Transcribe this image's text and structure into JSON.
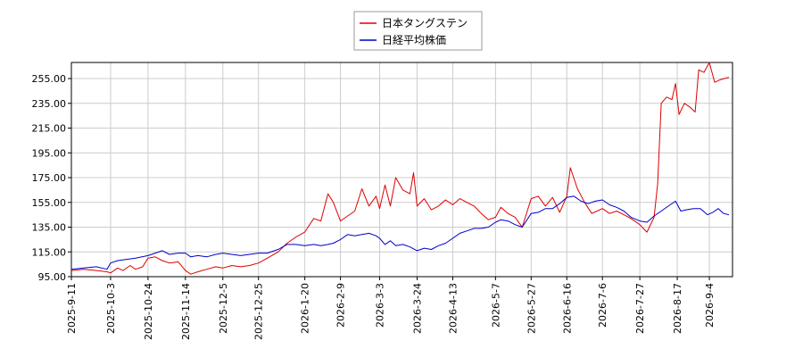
{
  "chart_data": {
    "type": "line",
    "title": "",
    "xlabel": "",
    "ylabel": "",
    "ylim": [
      95,
      268
    ],
    "yticks": [
      "95.00",
      "115.00",
      "135.00",
      "155.00",
      "175.00",
      "195.00",
      "215.00",
      "235.00",
      "255.00"
    ],
    "xlim": [
      "2025-09-11",
      "2026-09-17"
    ],
    "xticks": [
      "2025-9-11",
      "2025-10-3",
      "2025-10-24",
      "2025-11-14",
      "2025-12-5",
      "2025-12-25",
      "2026-1-20",
      "2026-2-9",
      "2026-3-3",
      "2026-3-24",
      "2026-4-13",
      "2026-5-7",
      "2026-5-27",
      "2026-6-16",
      "2026-7-6",
      "2026-7-27",
      "2026-8-17",
      "2026-9-4"
    ],
    "grid": true,
    "legend": "top-center",
    "series": [
      {
        "name": "日本タングステン",
        "color": "#dd0000",
        "points": [
          [
            "2025-09-11",
            100
          ],
          [
            "2025-09-18",
            101
          ],
          [
            "2025-09-25",
            100
          ],
          [
            "2025-10-01",
            99
          ],
          [
            "2025-10-03",
            98
          ],
          [
            "2025-10-07",
            102
          ],
          [
            "2025-10-10",
            100
          ],
          [
            "2025-10-14",
            104
          ],
          [
            "2025-10-17",
            101
          ],
          [
            "2025-10-21",
            103
          ],
          [
            "2025-10-24",
            110
          ],
          [
            "2025-10-28",
            111
          ],
          [
            "2025-11-01",
            108
          ],
          [
            "2025-11-05",
            106
          ],
          [
            "2025-11-10",
            107
          ],
          [
            "2025-11-14",
            100
          ],
          [
            "2025-11-17",
            97
          ],
          [
            "2025-11-21",
            99
          ],
          [
            "2025-11-26",
            101
          ],
          [
            "2025-12-01",
            103
          ],
          [
            "2025-12-05",
            102
          ],
          [
            "2025-12-10",
            104
          ],
          [
            "2025-12-15",
            103
          ],
          [
            "2025-12-20",
            104
          ],
          [
            "2025-12-25",
            106
          ],
          [
            "2025-12-30",
            110
          ],
          [
            "2026-01-05",
            115
          ],
          [
            "2026-01-10",
            122
          ],
          [
            "2026-01-15",
            127
          ],
          [
            "2026-01-20",
            131
          ],
          [
            "2026-01-25",
            142
          ],
          [
            "2026-01-29",
            140
          ],
          [
            "2026-02-02",
            162
          ],
          [
            "2026-02-05",
            155
          ],
          [
            "2026-02-09",
            140
          ],
          [
            "2026-02-13",
            144
          ],
          [
            "2026-02-17",
            148
          ],
          [
            "2026-02-21",
            166
          ],
          [
            "2026-02-25",
            152
          ],
          [
            "2026-03-01",
            160
          ],
          [
            "2026-03-03",
            150
          ],
          [
            "2026-03-06",
            169
          ],
          [
            "2026-03-09",
            152
          ],
          [
            "2026-03-12",
            175
          ],
          [
            "2026-03-16",
            165
          ],
          [
            "2026-03-20",
            162
          ],
          [
            "2026-03-22",
            179
          ],
          [
            "2026-03-24",
            152
          ],
          [
            "2026-03-28",
            158
          ],
          [
            "2026-04-01",
            149
          ],
          [
            "2026-04-05",
            152
          ],
          [
            "2026-04-09",
            157
          ],
          [
            "2026-04-13",
            153
          ],
          [
            "2026-04-17",
            158
          ],
          [
            "2026-04-21",
            155
          ],
          [
            "2026-04-25",
            152
          ],
          [
            "2026-04-29",
            146
          ],
          [
            "2026-05-03",
            141
          ],
          [
            "2026-05-07",
            143
          ],
          [
            "2026-05-10",
            151
          ],
          [
            "2026-05-14",
            146
          ],
          [
            "2026-05-18",
            143
          ],
          [
            "2026-05-22",
            135
          ],
          [
            "2026-05-27",
            158
          ],
          [
            "2026-05-31",
            160
          ],
          [
            "2026-06-04",
            152
          ],
          [
            "2026-06-08",
            159
          ],
          [
            "2026-06-12",
            147
          ],
          [
            "2026-06-16",
            160
          ],
          [
            "2026-06-18",
            183
          ],
          [
            "2026-06-22",
            166
          ],
          [
            "2026-06-26",
            155
          ],
          [
            "2026-06-30",
            146
          ],
          [
            "2026-07-03",
            148
          ],
          [
            "2026-07-06",
            150
          ],
          [
            "2026-07-10",
            146
          ],
          [
            "2026-07-14",
            148
          ],
          [
            "2026-07-18",
            145
          ],
          [
            "2026-07-22",
            142
          ],
          [
            "2026-07-27",
            137
          ],
          [
            "2026-07-31",
            131
          ],
          [
            "2026-08-04",
            143
          ],
          [
            "2026-08-06",
            170
          ],
          [
            "2026-08-08",
            235
          ],
          [
            "2026-08-11",
            240
          ],
          [
            "2026-08-14",
            238
          ],
          [
            "2026-08-16",
            251
          ],
          [
            "2026-08-18",
            226
          ],
          [
            "2026-08-21",
            235
          ],
          [
            "2026-08-24",
            232
          ],
          [
            "2026-08-27",
            228
          ],
          [
            "2026-08-29",
            262
          ],
          [
            "2026-09-01",
            260
          ],
          [
            "2026-09-04",
            268
          ],
          [
            "2026-09-07",
            252
          ],
          [
            "2026-09-10",
            254
          ],
          [
            "2026-09-15",
            256
          ]
        ]
      },
      {
        "name": "日経平均株価",
        "color": "#0000cc",
        "points": [
          [
            "2025-09-11",
            101
          ],
          [
            "2025-09-18",
            102
          ],
          [
            "2025-09-25",
            103
          ],
          [
            "2025-10-01",
            101
          ],
          [
            "2025-10-03",
            106
          ],
          [
            "2025-10-07",
            108
          ],
          [
            "2025-10-12",
            109
          ],
          [
            "2025-10-17",
            110
          ],
          [
            "2025-10-24",
            112
          ],
          [
            "2025-10-28",
            114
          ],
          [
            "2025-11-01",
            116
          ],
          [
            "2025-11-05",
            113
          ],
          [
            "2025-11-10",
            114
          ],
          [
            "2025-11-14",
            114
          ],
          [
            "2025-11-17",
            111
          ],
          [
            "2025-11-21",
            112
          ],
          [
            "2025-11-26",
            111
          ],
          [
            "2025-12-01",
            113
          ],
          [
            "2025-12-05",
            114
          ],
          [
            "2025-12-10",
            113
          ],
          [
            "2025-12-15",
            112
          ],
          [
            "2025-12-20",
            113
          ],
          [
            "2025-12-25",
            114
          ],
          [
            "2025-12-30",
            114
          ],
          [
            "2026-01-05",
            117
          ],
          [
            "2026-01-10",
            121
          ],
          [
            "2026-01-15",
            121
          ],
          [
            "2026-01-20",
            120
          ],
          [
            "2026-01-25",
            121
          ],
          [
            "2026-01-29",
            120
          ],
          [
            "2026-02-02",
            121
          ],
          [
            "2026-02-05",
            122
          ],
          [
            "2026-02-09",
            125
          ],
          [
            "2026-02-13",
            129
          ],
          [
            "2026-02-17",
            128
          ],
          [
            "2026-02-21",
            129
          ],
          [
            "2026-02-25",
            130
          ],
          [
            "2026-03-01",
            128
          ],
          [
            "2026-03-03",
            126
          ],
          [
            "2026-03-06",
            121
          ],
          [
            "2026-03-09",
            124
          ],
          [
            "2026-03-12",
            120
          ],
          [
            "2026-03-16",
            121
          ],
          [
            "2026-03-20",
            119
          ],
          [
            "2026-03-24",
            116
          ],
          [
            "2026-03-28",
            118
          ],
          [
            "2026-04-01",
            117
          ],
          [
            "2026-04-05",
            120
          ],
          [
            "2026-04-09",
            122
          ],
          [
            "2026-04-13",
            126
          ],
          [
            "2026-04-17",
            130
          ],
          [
            "2026-04-21",
            132
          ],
          [
            "2026-04-25",
            134
          ],
          [
            "2026-04-29",
            134
          ],
          [
            "2026-05-03",
            135
          ],
          [
            "2026-05-07",
            139
          ],
          [
            "2026-05-10",
            141
          ],
          [
            "2026-05-14",
            140
          ],
          [
            "2026-05-18",
            137
          ],
          [
            "2026-05-22",
            135
          ],
          [
            "2026-05-27",
            146
          ],
          [
            "2026-05-31",
            147
          ],
          [
            "2026-06-04",
            150
          ],
          [
            "2026-06-08",
            150
          ],
          [
            "2026-06-12",
            154
          ],
          [
            "2026-06-16",
            159
          ],
          [
            "2026-06-20",
            160
          ],
          [
            "2026-06-24",
            156
          ],
          [
            "2026-06-28",
            154
          ],
          [
            "2026-07-02",
            156
          ],
          [
            "2026-07-06",
            157
          ],
          [
            "2026-07-10",
            153
          ],
          [
            "2026-07-14",
            151
          ],
          [
            "2026-07-18",
            148
          ],
          [
            "2026-07-22",
            143
          ],
          [
            "2026-07-27",
            140
          ],
          [
            "2026-07-31",
            139
          ],
          [
            "2026-08-04",
            144
          ],
          [
            "2026-08-08",
            148
          ],
          [
            "2026-08-12",
            152
          ],
          [
            "2026-08-16",
            156
          ],
          [
            "2026-08-19",
            148
          ],
          [
            "2026-08-22",
            149
          ],
          [
            "2026-08-26",
            150
          ],
          [
            "2026-08-30",
            150
          ],
          [
            "2026-09-03",
            145
          ],
          [
            "2026-09-06",
            147
          ],
          [
            "2026-09-09",
            150
          ],
          [
            "2026-09-12",
            146
          ],
          [
            "2026-09-15",
            145
          ]
        ]
      }
    ]
  }
}
